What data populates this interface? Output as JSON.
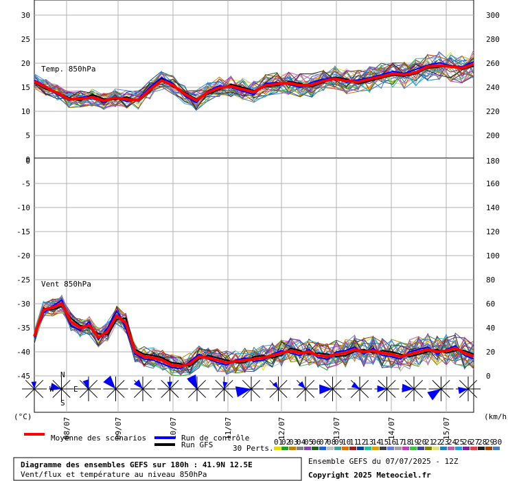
{
  "chart_data": [
    {
      "type": "line",
      "title": "Temp. 850hPa",
      "left_axis_ticks": [
        30,
        25,
        20,
        15,
        10,
        5,
        0
      ],
      "right_axis_ticks": [
        300,
        280,
        260,
        240,
        220,
        200
      ],
      "left_ylim": [
        0,
        32
      ],
      "x_ticks": [
        "08/07",
        "09/07",
        "10/07",
        "11/07",
        "12/07",
        "13/07",
        "14/07",
        "15/07"
      ],
      "series": [
        {
          "name": "Moyenne des scénarios",
          "color": "#ff0000",
          "values": [
            16.2,
            15.0,
            13.8,
            12.5,
            12.6,
            12.9,
            12.2,
            12.8,
            12.5,
            12.3,
            14.5,
            16.4,
            15.4,
            13.6,
            12.3,
            13.9,
            14.9,
            15.2,
            14.6,
            14.0,
            15.4,
            15.7,
            15.9,
            15.4,
            15.5,
            16.3,
            16.8,
            16.3,
            16.1,
            16.7,
            17.2,
            17.8,
            17.6,
            18.1,
            19.3,
            19.5,
            19.3,
            19.0,
            19.8
          ]
        },
        {
          "name": "Run de contrôle",
          "color": "#0000ff",
          "values": [
            16.5,
            15.2,
            13.5,
            12.3,
            12.9,
            13.2,
            11.8,
            13.0,
            12.0,
            12.5,
            15.0,
            17.0,
            15.8,
            13.2,
            11.8,
            14.2,
            15.3,
            15.0,
            14.2,
            13.5,
            15.8,
            16.0,
            15.6,
            15.0,
            16.0,
            16.7,
            17.0,
            16.0,
            16.5,
            17.0,
            17.6,
            18.3,
            17.9,
            18.7,
            19.6,
            20.1,
            19.5,
            19.3,
            20.3
          ]
        },
        {
          "name": "Run GFS",
          "color": "#000000",
          "values": [
            16.0,
            14.6,
            13.9,
            12.8,
            12.2,
            13.5,
            12.6,
            12.4,
            13.0,
            12.1,
            14.1,
            16.8,
            15.1,
            13.9,
            12.6,
            13.6,
            14.5,
            15.6,
            15.0,
            14.3,
            15.1,
            15.3,
            16.2,
            15.8,
            15.1,
            16.0,
            17.1,
            16.7,
            15.7,
            16.3,
            16.9,
            17.5,
            17.3,
            17.8,
            19.0,
            19.2,
            19.6,
            18.7,
            19.4
          ]
        }
      ]
    },
    {
      "type": "line",
      "title": "Vent 850hPa",
      "left_axis_ticks": [
        0,
        -5,
        -10,
        -15,
        -20,
        -25,
        -30,
        -35,
        -40,
        -45
      ],
      "right_axis_ticks": [
        180,
        160,
        140,
        120,
        100,
        80,
        60,
        40,
        20,
        0
      ],
      "right_ylim": [
        -0.8,
        180
      ],
      "left_unit": "(°C)",
      "right_unit": "(km/h)",
      "series": [
        {
          "name": "Moyenne des scénarios",
          "color": "#ff0000",
          "values": [
            33,
            55,
            57,
            60,
            45,
            40,
            42,
            32,
            37,
            50,
            44,
            20,
            16,
            15,
            13,
            9,
            8,
            10,
            16,
            15,
            13,
            11,
            12,
            13,
            14,
            15,
            17,
            19,
            21,
            19,
            20,
            17,
            16,
            18,
            19,
            22,
            20,
            21,
            19,
            18,
            16,
            18,
            20,
            22,
            20,
            21,
            23,
            19,
            16
          ]
        },
        {
          "name": "Run de contrôle",
          "color": "#0000ff",
          "values": [
            32,
            52,
            58,
            63,
            42,
            38,
            45,
            30,
            40,
            54,
            40,
            18,
            14,
            13,
            10,
            7,
            6,
            12,
            18,
            14,
            11,
            9,
            13,
            15,
            12,
            13,
            18,
            21,
            19,
            17,
            22,
            15,
            14,
            20,
            21,
            24,
            18,
            23,
            17,
            16,
            14,
            20,
            22,
            24,
            18,
            22,
            25,
            17,
            14
          ]
        },
        {
          "name": "Run GFS",
          "color": "#000000",
          "values": [
            34,
            56,
            55,
            58,
            48,
            42,
            40,
            35,
            34,
            47,
            48,
            22,
            18,
            17,
            15,
            11,
            10,
            8,
            14,
            17,
            15,
            13,
            11,
            11,
            16,
            17,
            15,
            17,
            23,
            21,
            18,
            19,
            18,
            16,
            17,
            20,
            22,
            19,
            21,
            20,
            18,
            16,
            18,
            20,
            22,
            19,
            21,
            21,
            18
          ]
        }
      ]
    }
  ],
  "legend": {
    "mean": "Moyenne des scénarios",
    "control": "Run de contrôle",
    "gfs": "Run GFS",
    "perts_label": "30 Perts.",
    "perts": [
      "01",
      "02",
      "03",
      "04",
      "05",
      "06",
      "07",
      "08",
      "09",
      "10",
      "11",
      "12",
      "13",
      "14",
      "15",
      "16",
      "17",
      "18",
      "19",
      "20",
      "21",
      "22",
      "23",
      "24",
      "25",
      "26",
      "27",
      "28",
      "29",
      "30"
    ],
    "pert_colors": [
      "#e0e000",
      "#20a020",
      "#c08000",
      "#808080",
      "#8040c0",
      "#206020",
      "#2060e0",
      "#c0c0c0",
      "#40a0a0",
      "#e07000",
      "#a02020",
      "#0040a0",
      "#20c0a0",
      "#e0a000",
      "#404040",
      "#6080e0",
      "#a0a0a0",
      "#c040c0",
      "#40c040",
      "#4040a0",
      "#808000",
      "#e0e080",
      "#2080c0",
      "#c060a0",
      "#20a0e0",
      "#8020a0",
      "#e04040",
      "#202020",
      "#a04000",
      "#4080c0"
    ]
  },
  "compass": {
    "n": "N",
    "w": "W",
    "e": "E",
    "s": "S"
  },
  "footer": {
    "title": "Diagramme des ensembles GEFS sur 180h : 41.9N 12.5E",
    "subtitle": "Vent/flux et température au niveau 850hPa",
    "run": "Ensemble GEFS du 07/07/2025 - 12Z",
    "copyright": "Copyright 2025 Meteociel.fr"
  },
  "colors": {
    "mean": "#ff0000",
    "control": "#0000ff",
    "gfs": "#000000",
    "grid": "#b0b0b0",
    "wind_rose": "#0000ff"
  }
}
